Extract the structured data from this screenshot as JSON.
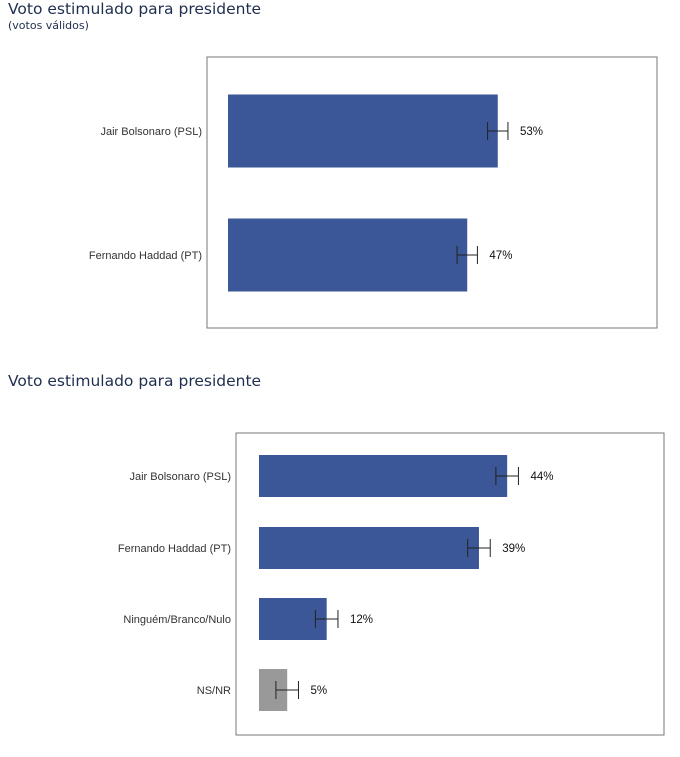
{
  "chart_data": [
    {
      "type": "bar",
      "orientation": "horizontal",
      "title": "Voto estimulado para presidente",
      "subtitle": "(votos válidos)",
      "categories": [
        "Jair Bolsonaro (PSL)",
        "Fernando Haddad (PT)"
      ],
      "values": [
        53,
        47
      ],
      "value_labels": [
        "53%",
        "47%"
      ],
      "error_margin": 2,
      "colors": [
        "#3b5797",
        "#3b5797"
      ],
      "xlim": [
        0,
        85
      ],
      "grid": false
    },
    {
      "type": "bar",
      "orientation": "horizontal",
      "title": "Voto estimulado para presidente",
      "categories": [
        "Jair Bolsonaro (PSL)",
        "Fernando Haddad (PT)",
        "Ninguém/Branco/Nulo",
        "NS/NR"
      ],
      "values": [
        44,
        39,
        12,
        5
      ],
      "value_labels": [
        "44%",
        "39%",
        "12%",
        "5%"
      ],
      "error_margin": 2,
      "colors": [
        "#3b5797",
        "#3b5797",
        "#3b5797",
        "#999999"
      ],
      "xlim": [
        0,
        72
      ],
      "grid": false
    }
  ]
}
